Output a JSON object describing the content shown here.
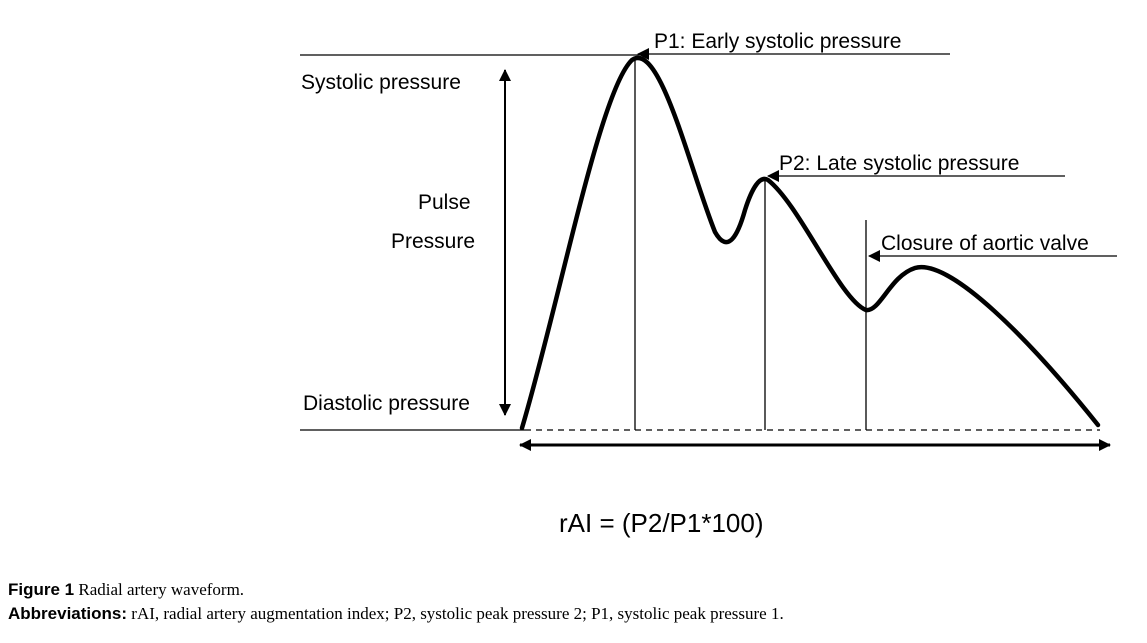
{
  "labels": {
    "systolic": "Systolic pressure",
    "diastolic": "Diastolic pressure",
    "pulse_line1": "Pulse",
    "pulse_line2": "Pressure",
    "p1": "P1: Early systolic pressure",
    "p2": "P2: Late systolic pressure",
    "aortic": "Closure of aortic valve",
    "formula": "rAI = (P2/P1*100)"
  },
  "caption": {
    "figure_label": "Figure 1",
    "figure_title": "Radial artery waveform.",
    "abbrev_label": "Abbreviations:",
    "abbrev_text": "rAI, radial artery augmentation index; P2, systolic peak pressure 2; P1, systolic peak pressure 1."
  }
}
